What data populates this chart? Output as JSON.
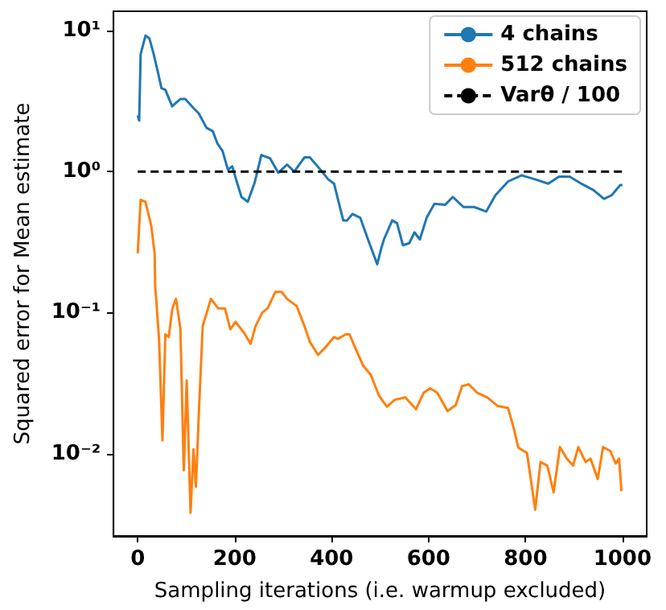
{
  "chart_data": {
    "type": "line",
    "xlabel": "Sampling iterations (i.e. warmup excluded)",
    "ylabel": "Squared error for Mean estimate",
    "log": "y",
    "legend": "top right",
    "grid": false,
    "marker": "none",
    "xlim": [
      -50,
      1050
    ],
    "xticks": [
      0,
      200,
      400,
      600,
      800,
      1000
    ],
    "ylim": [
      0.0026,
      13.7
    ],
    "yticks": [
      {
        "value": 0.01,
        "label": "10⁻²"
      },
      {
        "value": 0.1,
        "label": "10⁻¹"
      },
      {
        "value": 1,
        "label": "10⁰"
      },
      {
        "value": 10,
        "label": "10¹"
      }
    ],
    "series": [
      {
        "name": "4 chains",
        "color": "#1f77b4",
        "line_style": "solid",
        "x": [
          0,
          3,
          6,
          16,
          24,
          33,
          42,
          49,
          57,
          71,
          88,
          98,
          115,
          126,
          142,
          155,
          164,
          175,
          186,
          195,
          202,
          214,
          227,
          241,
          255,
          273,
          290,
          308,
          323,
          344,
          355,
          377,
          393,
          405,
          424,
          432,
          443,
          459,
          475,
          494,
          503,
          508,
          525,
          535,
          547,
          560,
          571,
          582,
          596,
          612,
          634,
          650,
          672,
          694,
          719,
          738,
          764,
          792,
          820,
          847,
          869,
          891,
          918,
          940,
          962,
          978,
          995,
          1000
        ],
        "values": [
          2.5,
          2.3,
          6.8,
          9.2,
          8.8,
          6.8,
          5.0,
          3.9,
          3.8,
          2.9,
          3.27,
          3.27,
          2.82,
          2.58,
          2.04,
          1.93,
          1.59,
          1.4,
          1.03,
          1.09,
          0.9,
          0.66,
          0.61,
          0.83,
          1.31,
          1.24,
          0.98,
          1.12,
          1.0,
          1.26,
          1.26,
          1.03,
          0.88,
          0.82,
          0.45,
          0.45,
          0.5,
          0.47,
          0.33,
          0.22,
          0.29,
          0.33,
          0.45,
          0.43,
          0.3,
          0.31,
          0.37,
          0.33,
          0.47,
          0.59,
          0.58,
          0.66,
          0.56,
          0.56,
          0.52,
          0.68,
          0.85,
          0.94,
          0.88,
          0.82,
          0.92,
          0.92,
          0.81,
          0.74,
          0.64,
          0.68,
          0.8,
          0.8
        ]
      },
      {
        "name": "512 chains",
        "color": "#ff7f0e",
        "line_style": "solid",
        "x": [
          0,
          6,
          16,
          28,
          35,
          36,
          44,
          51,
          57,
          64,
          71,
          79,
          88,
          95,
          101,
          109,
          115,
          120,
          126,
          134,
          151,
          166,
          180,
          191,
          202,
          219,
          233,
          243,
          257,
          268,
          284,
          297,
          308,
          328,
          344,
          355,
          372,
          388,
          405,
          413,
          429,
          437,
          448,
          465,
          481,
          497,
          514,
          530,
          552,
          574,
          590,
          603,
          618,
          639,
          656,
          669,
          683,
          700,
          721,
          743,
          764,
          776,
          785,
          803,
          820,
          831,
          845,
          858,
          871,
          885,
          898,
          909,
          924,
          934,
          949,
          960,
          975,
          986,
          993,
          998
        ],
        "values": [
          0.263,
          0.63,
          0.61,
          0.41,
          0.26,
          0.155,
          0.065,
          0.0124,
          0.07,
          0.067,
          0.105,
          0.125,
          0.077,
          0.0076,
          0.033,
          0.0038,
          0.0107,
          0.0058,
          0.019,
          0.08,
          0.125,
          0.107,
          0.107,
          0.076,
          0.086,
          0.072,
          0.06,
          0.08,
          0.1,
          0.107,
          0.14,
          0.14,
          0.125,
          0.111,
          0.08,
          0.062,
          0.05,
          0.057,
          0.067,
          0.065,
          0.07,
          0.07,
          0.057,
          0.042,
          0.036,
          0.026,
          0.0215,
          0.024,
          0.025,
          0.0206,
          0.027,
          0.029,
          0.027,
          0.02,
          0.022,
          0.03,
          0.031,
          0.027,
          0.025,
          0.0217,
          0.021,
          0.015,
          0.011,
          0.0101,
          0.004,
          0.0087,
          0.0082,
          0.0053,
          0.0111,
          0.0092,
          0.0082,
          0.0111,
          0.0087,
          0.0092,
          0.0066,
          0.0111,
          0.0104,
          0.0085,
          0.0092,
          0.0054
        ]
      },
      {
        "name": "Varθ / 100",
        "color": "#000000",
        "line_style": "dashed",
        "x": [
          0,
          1000
        ],
        "values": [
          1,
          1
        ]
      }
    ]
  }
}
